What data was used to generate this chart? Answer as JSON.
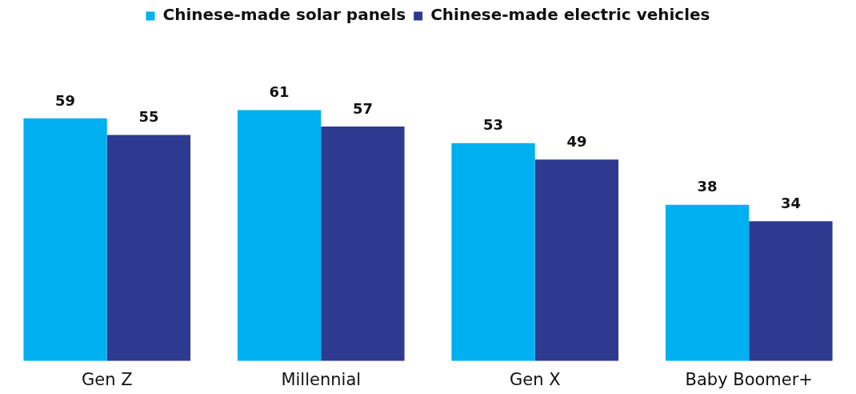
{
  "chart_data": {
    "type": "bar",
    "categories": [
      "Gen Z",
      "Millennial",
      "Gen X",
      "Baby Boomer+"
    ],
    "series": [
      {
        "name": "Chinese-made solar panels",
        "color": "#00b0f0",
        "values": [
          59,
          61,
          53,
          38
        ]
      },
      {
        "name": "Chinese-made electric vehicles",
        "color": "#2e3a8f",
        "values": [
          55,
          57,
          49,
          34
        ]
      }
    ],
    "tick_labels": "x",
    "grid": false,
    "legend": "top",
    "data_labels": true
  }
}
